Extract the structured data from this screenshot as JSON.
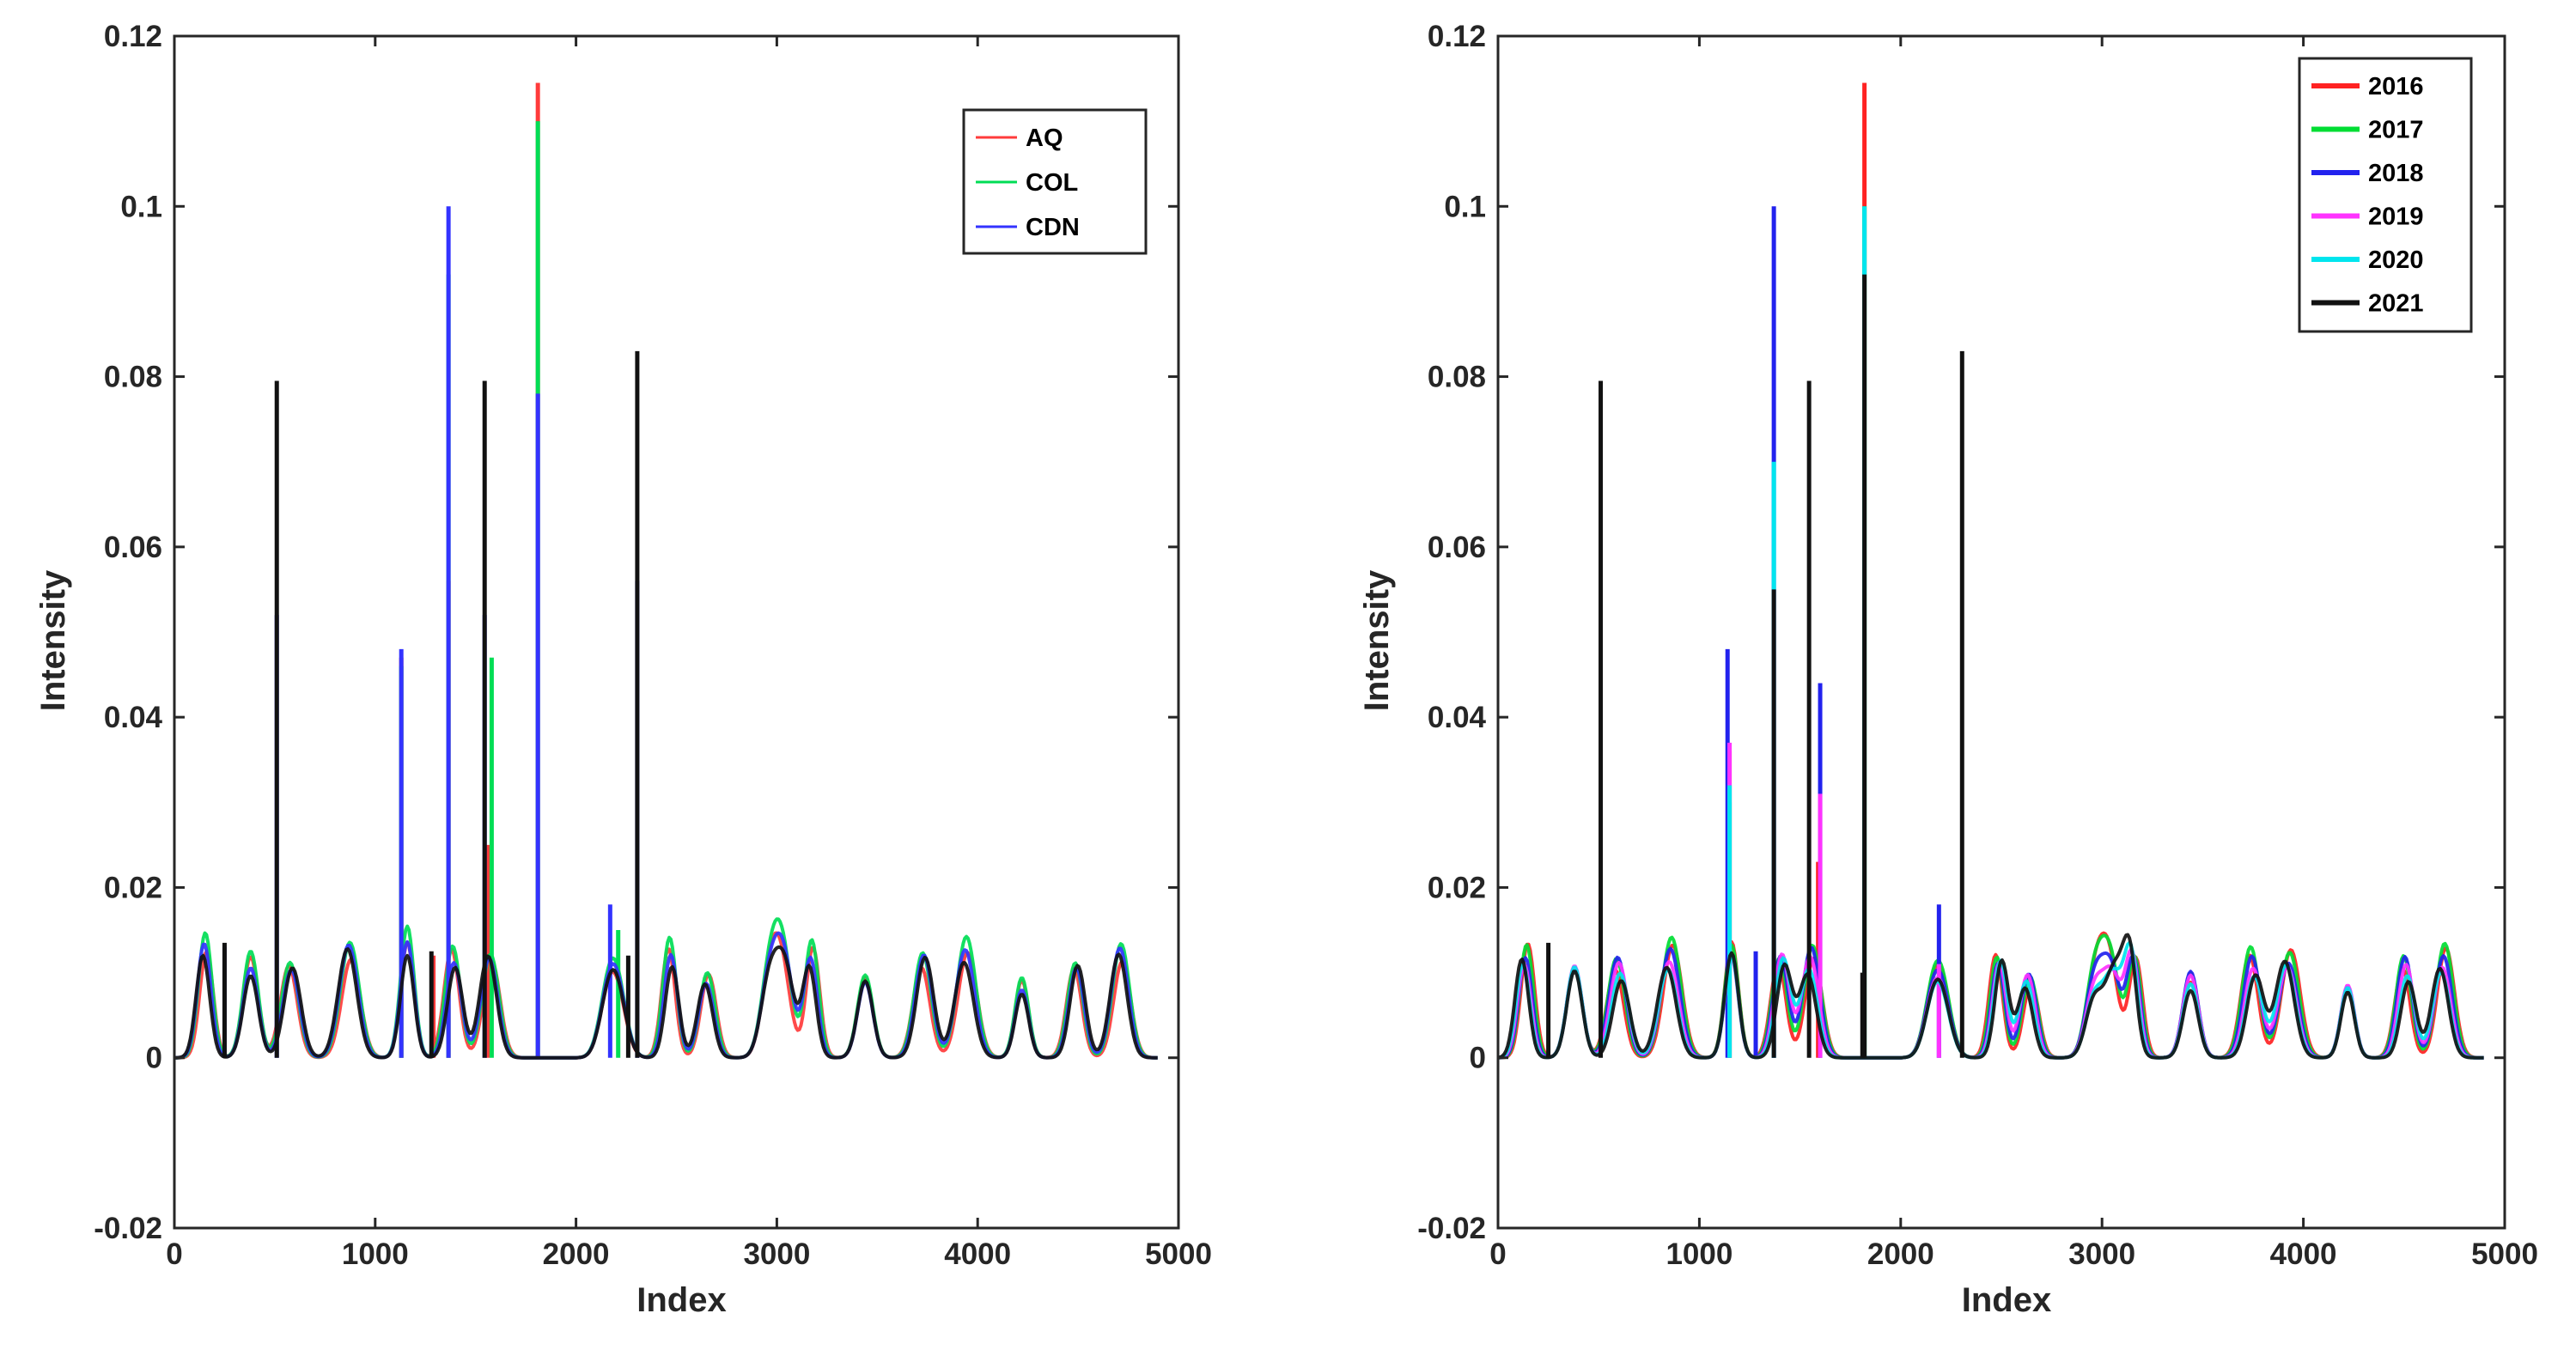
{
  "chart_data": [
    {
      "type": "line",
      "xlabel": "Index",
      "ylabel": "Intensity",
      "xlim": [
        0,
        5000
      ],
      "ylim": [
        -0.02,
        0.12
      ],
      "xticks": [
        "0",
        "1000",
        "2000",
        "3000",
        "4000",
        "5000"
      ],
      "yticks": [
        "-0.02",
        "0",
        "0.02",
        "0.04",
        "0.06",
        "0.08",
        "0.1",
        "0.12"
      ],
      "xtick_values": [
        0,
        1000,
        2000,
        3000,
        4000,
        5000
      ],
      "ytick_values": [
        -0.02,
        0,
        0.02,
        0.04,
        0.06,
        0.08,
        0.1,
        0.12
      ],
      "legend_position": "top-right",
      "legend": [
        "AQ",
        "COL",
        "CDN"
      ],
      "series": [
        {
          "name": "AQ",
          "color": "#ff3b3b",
          "scale": 1.0,
          "spikes": [
            [
              1130,
              0.047
            ],
            [
              1365,
              0.056
            ],
            [
              1560,
              0.025
            ],
            [
              1810,
              0.1145
            ],
            [
              1290,
              0.012
            ]
          ]
        },
        {
          "name": "COL",
          "color": "#00dd55",
          "scale": 1.1,
          "spikes": [
            [
              1130,
              0.046
            ],
            [
              1365,
              0.092
            ],
            [
              1580,
              0.047
            ],
            [
              1810,
              0.11
            ],
            [
              2210,
              0.015
            ]
          ]
        },
        {
          "name": "CDN",
          "color": "#3333ff",
          "scale": 1.0,
          "spikes": [
            [
              510,
              0.052
            ],
            [
              1130,
              0.048
            ],
            [
              1365,
              0.1
            ],
            [
              1545,
              0.052
            ],
            [
              1810,
              0.078
            ],
            [
              2170,
              0.018
            ],
            [
              2305,
              0.056
            ],
            [
              250,
              0.013
            ]
          ]
        },
        {
          "name": "",
          "color": "#111111",
          "scale": 0.95,
          "spikes": [
            [
              510,
              0.0795
            ],
            [
              1545,
              0.0795
            ],
            [
              2305,
              0.083
            ],
            [
              250,
              0.0135
            ],
            [
              1280,
              0.0125
            ],
            [
              2260,
              0.012
            ]
          ]
        }
      ]
    },
    {
      "type": "line",
      "xlabel": "Index",
      "ylabel": "Intensity",
      "xlim": [
        0,
        5000
      ],
      "ylim": [
        -0.02,
        0.12
      ],
      "xticks": [
        "0",
        "1000",
        "2000",
        "3000",
        "4000",
        "5000"
      ],
      "yticks": [
        "-0.02",
        "0",
        "0.02",
        "0.04",
        "0.06",
        "0.08",
        "0.1",
        "0.12"
      ],
      "xtick_values": [
        0,
        1000,
        2000,
        3000,
        4000,
        5000
      ],
      "ytick_values": [
        -0.02,
        0,
        0.02,
        0.04,
        0.06,
        0.08,
        0.1,
        0.12
      ],
      "legend_position": "top-right",
      "legend": [
        "2016",
        "2017",
        "2018",
        "2019",
        "2020",
        "2021"
      ],
      "series": [
        {
          "name": "2016",
          "color": "#ff2222",
          "scale": 1.0,
          "spikes": [
            [
              1820,
              0.1145
            ],
            [
              1150,
              0.036
            ],
            [
              1590,
              0.023
            ]
          ]
        },
        {
          "name": "2017",
          "color": "#00dd33",
          "scale": 1.05,
          "spikes": [
            [
              1820,
              0.1
            ],
            [
              1150,
              0.03
            ]
          ]
        },
        {
          "name": "2018",
          "color": "#2222ee",
          "scale": 1.0,
          "spikes": [
            [
              1370,
              0.1
            ],
            [
              1140,
              0.048
            ],
            [
              1600,
              0.044
            ],
            [
              2190,
              0.018
            ],
            [
              1280,
              0.0125
            ]
          ]
        },
        {
          "name": "2019",
          "color": "#ff33ff",
          "scale": 0.95,
          "spikes": [
            [
              1150,
              0.037
            ],
            [
              1600,
              0.031
            ],
            [
              2190,
              0.011
            ]
          ]
        },
        {
          "name": "2020",
          "color": "#00e5ee",
          "scale": 0.9,
          "spikes": [
            [
              1370,
              0.07
            ],
            [
              1820,
              0.1
            ],
            [
              1150,
              0.032
            ]
          ]
        },
        {
          "name": "2021",
          "color": "#111111",
          "scale": 0.88,
          "spikes": [
            [
              510,
              0.0795
            ],
            [
              1545,
              0.0795
            ],
            [
              2305,
              0.083
            ],
            [
              1370,
              0.055
            ],
            [
              1820,
              0.092
            ],
            [
              250,
              0.0135
            ],
            [
              1810,
              0.01
            ]
          ]
        }
      ]
    }
  ]
}
